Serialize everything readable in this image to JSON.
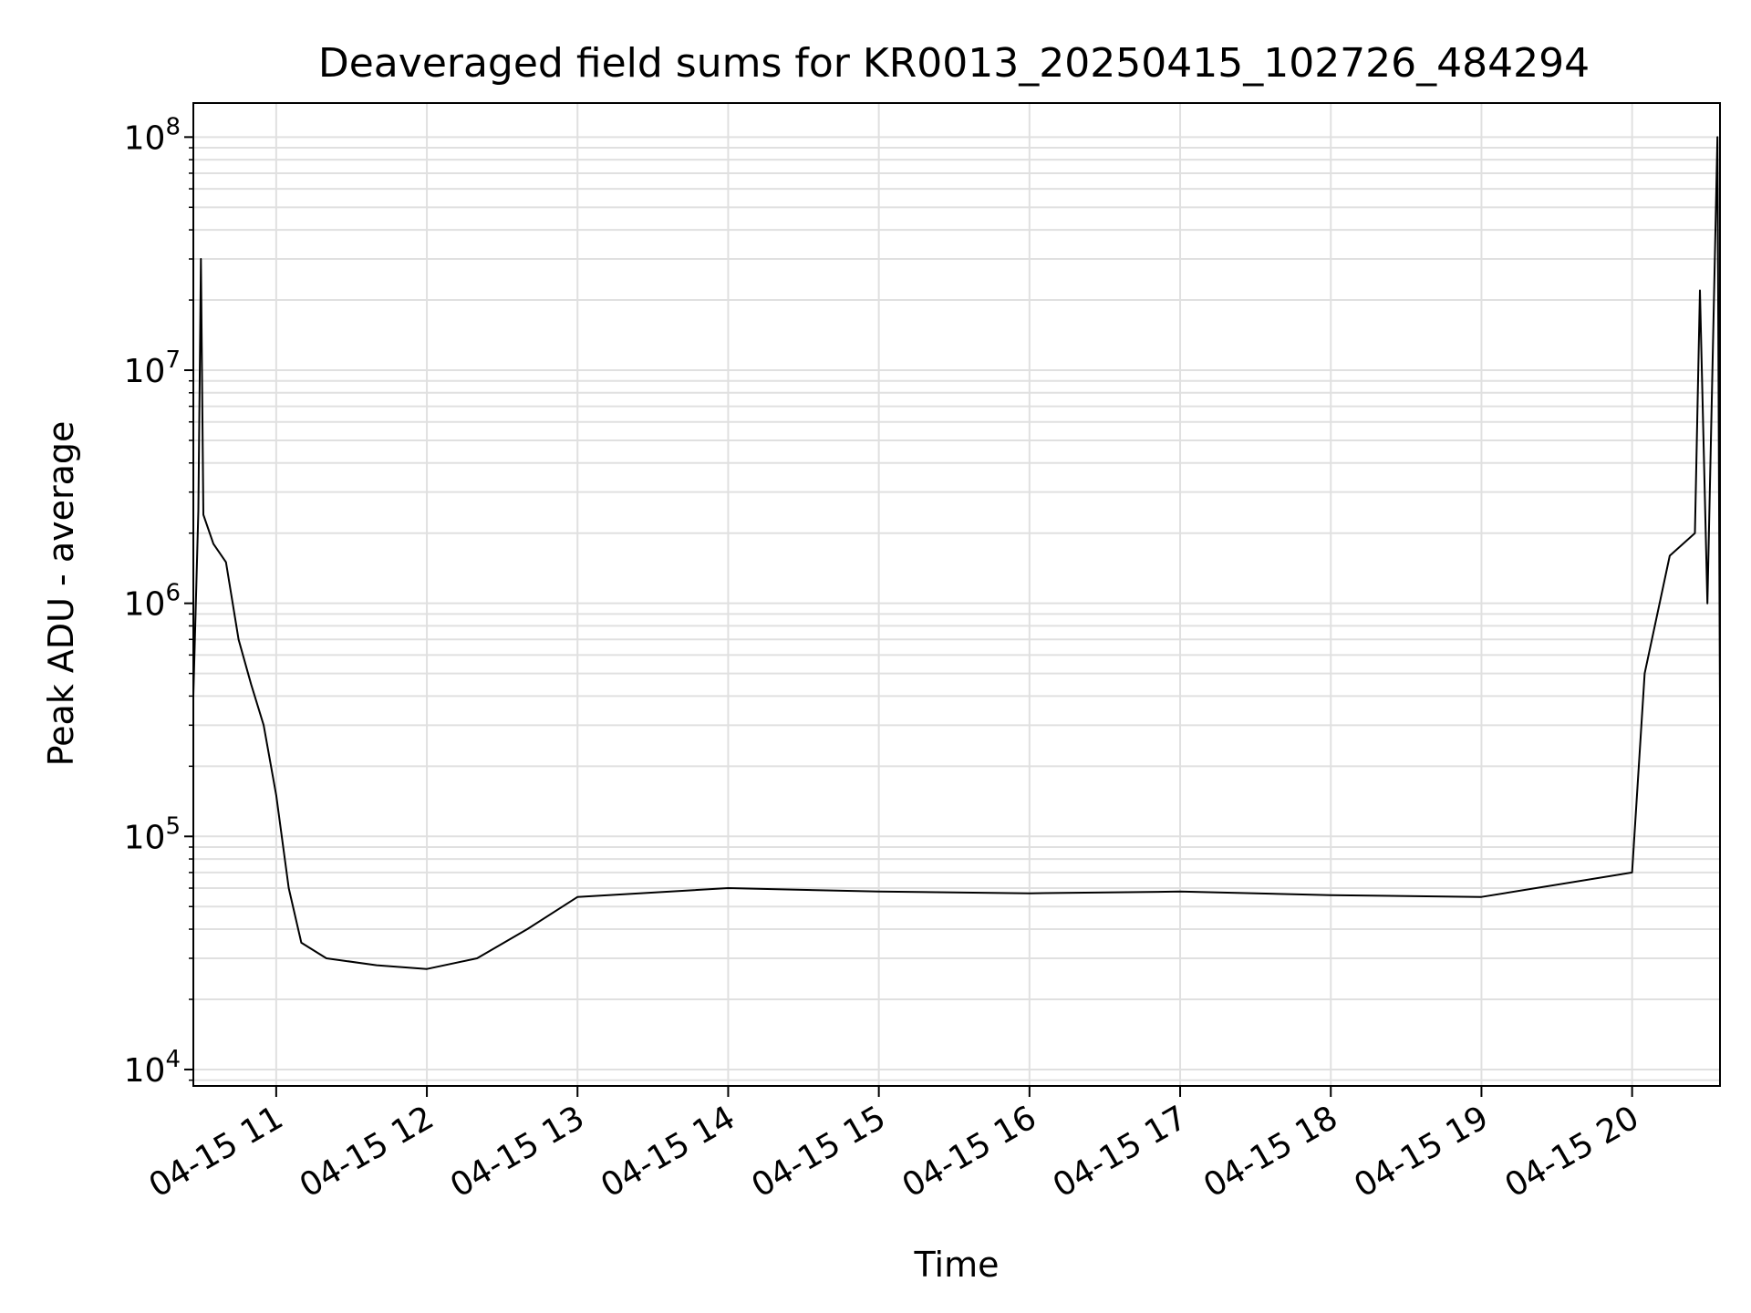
{
  "chart_data": {
    "type": "line",
    "title": "Deaveraged field sums for KR0013_20250415_102726_484294",
    "xlabel": "Time",
    "ylabel": "Peak ADU - average",
    "yscale": "log",
    "grid": true,
    "legend": "none",
    "line_color": "#000000",
    "grid_color": "#e0e0e0",
    "xlim": [
      "2025-04-15T10:27",
      "2025-04-15T20:35"
    ],
    "ylim": [
      8500,
      140000000
    ],
    "x_ticks": [
      {
        "t": "2025-04-15T11:00",
        "label": "04-15 11"
      },
      {
        "t": "2025-04-15T12:00",
        "label": "04-15 12"
      },
      {
        "t": "2025-04-15T13:00",
        "label": "04-15 13"
      },
      {
        "t": "2025-04-15T14:00",
        "label": "04-15 14"
      },
      {
        "t": "2025-04-15T15:00",
        "label": "04-15 15"
      },
      {
        "t": "2025-04-15T16:00",
        "label": "04-15 16"
      },
      {
        "t": "2025-04-15T17:00",
        "label": "04-15 17"
      },
      {
        "t": "2025-04-15T18:00",
        "label": "04-15 18"
      },
      {
        "t": "2025-04-15T19:00",
        "label": "04-15 19"
      },
      {
        "t": "2025-04-15T20:00",
        "label": "04-15 20"
      }
    ],
    "y_ticks": [
      {
        "value": 10000,
        "base": "10",
        "exp": "4"
      },
      {
        "value": 100000,
        "base": "10",
        "exp": "5"
      },
      {
        "value": 1000000,
        "base": "10",
        "exp": "6"
      },
      {
        "value": 10000000,
        "base": "10",
        "exp": "7"
      },
      {
        "value": 100000000,
        "base": "10",
        "exp": "8"
      }
    ],
    "series": [
      {
        "points": [
          [
            "2025-04-15T10:27",
            400000
          ],
          [
            "2025-04-15T10:29",
            2500000
          ],
          [
            "2025-04-15T10:30",
            30000000
          ],
          [
            "2025-04-15T10:31",
            2400000
          ],
          [
            "2025-04-15T10:35",
            1800000
          ],
          [
            "2025-04-15T10:40",
            1500000
          ],
          [
            "2025-04-15T10:45",
            700000
          ],
          [
            "2025-04-15T10:50",
            450000
          ],
          [
            "2025-04-15T10:55",
            300000
          ],
          [
            "2025-04-15T11:00",
            150000
          ],
          [
            "2025-04-15T11:05",
            60000
          ],
          [
            "2025-04-15T11:10",
            35000
          ],
          [
            "2025-04-15T11:20",
            30000
          ],
          [
            "2025-04-15T11:40",
            28000
          ],
          [
            "2025-04-15T12:00",
            27000
          ],
          [
            "2025-04-15T12:20",
            30000
          ],
          [
            "2025-04-15T12:40",
            40000
          ],
          [
            "2025-04-15T13:00",
            55000
          ],
          [
            "2025-04-15T14:00",
            60000
          ],
          [
            "2025-04-15T15:00",
            58000
          ],
          [
            "2025-04-15T16:00",
            57000
          ],
          [
            "2025-04-15T17:00",
            58000
          ],
          [
            "2025-04-15T18:00",
            56000
          ],
          [
            "2025-04-15T19:00",
            55000
          ],
          [
            "2025-04-15T20:00",
            70000
          ],
          [
            "2025-04-15T20:05",
            500000
          ],
          [
            "2025-04-15T20:15",
            1600000
          ],
          [
            "2025-04-15T20:25",
            2000000
          ],
          [
            "2025-04-15T20:27",
            22000000
          ],
          [
            "2025-04-15T20:30",
            1000000
          ],
          [
            "2025-04-15T20:34",
            100000000
          ],
          [
            "2025-04-15T20:35",
            350000
          ]
        ]
      }
    ]
  }
}
